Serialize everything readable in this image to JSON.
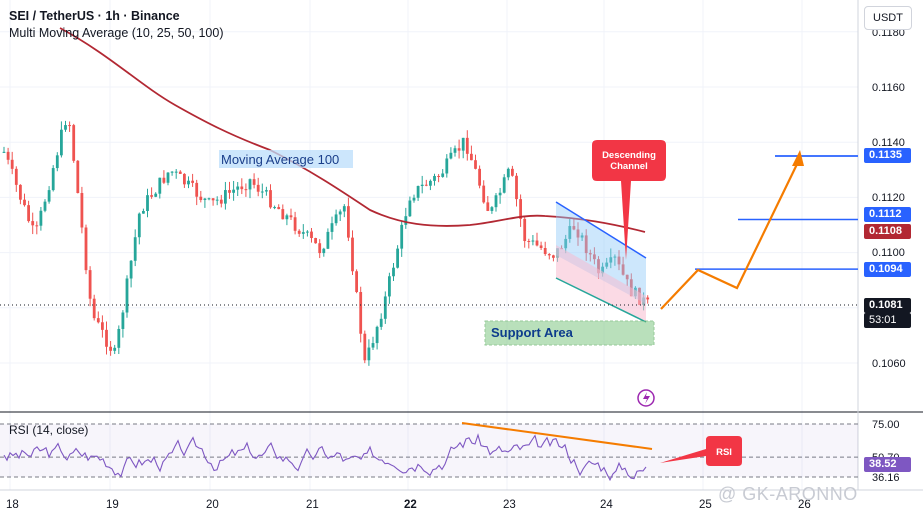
{
  "header": {
    "title": "SEI / TetherUS · 1h · Binance",
    "indicator": "Multi Moving Average (10, 25, 50, 100)"
  },
  "currency_button": "USDT",
  "rsi_panel": {
    "title": "RSI (14, close)",
    "levels": [
      "75.00",
      "50.70",
      "36.16"
    ],
    "current_label": "38.52"
  },
  "price_axis": {
    "ticks": [
      "0.1160",
      "0.1140",
      "0.1120",
      "0.1100",
      "0.1060"
    ],
    "tag_blue_top": "0.1135",
    "tag_blue_mid": "0.1112",
    "tag_ma": "0.1108",
    "tag_blue_low": "0.1094",
    "tag_last": "0.1081",
    "tag_countdown": "53:01"
  },
  "time_axis": {
    "labels": [
      "18",
      "19",
      "20",
      "21",
      "22",
      "23",
      "24",
      "25",
      "26"
    ]
  },
  "annotations": {
    "moving_average_label": "Moving Average 100",
    "descending_channel_label": [
      "Descending",
      "Channel"
    ],
    "support_label": "Support Area",
    "rsi_callout": "RSI"
  },
  "watermark": "@ GK-ARONNO",
  "colors": {
    "up": "#26a69a",
    "down": "#ef5350",
    "ma100": "#b22833",
    "projection": "#f57c00",
    "level_line": "#2962ff",
    "rsi_line": "#7e57c2"
  },
  "chart_data": {
    "type": "candlestick",
    "price_axis_range": [
      0.1048,
      0.118
    ],
    "x_axis_days": [
      "18",
      "19",
      "20",
      "21",
      "22",
      "23",
      "24",
      "25",
      "26"
    ],
    "horizontal_levels": [
      0.1135,
      0.1112,
      0.1094
    ],
    "ma100_last": 0.1108,
    "last_price": 0.1081,
    "projection_path": [
      0.1081,
      0.1094,
      0.109,
      0.1135
    ],
    "rsi_levels": [
      75.0,
      50.7,
      36.16
    ],
    "rsi_last": 38.52
  }
}
